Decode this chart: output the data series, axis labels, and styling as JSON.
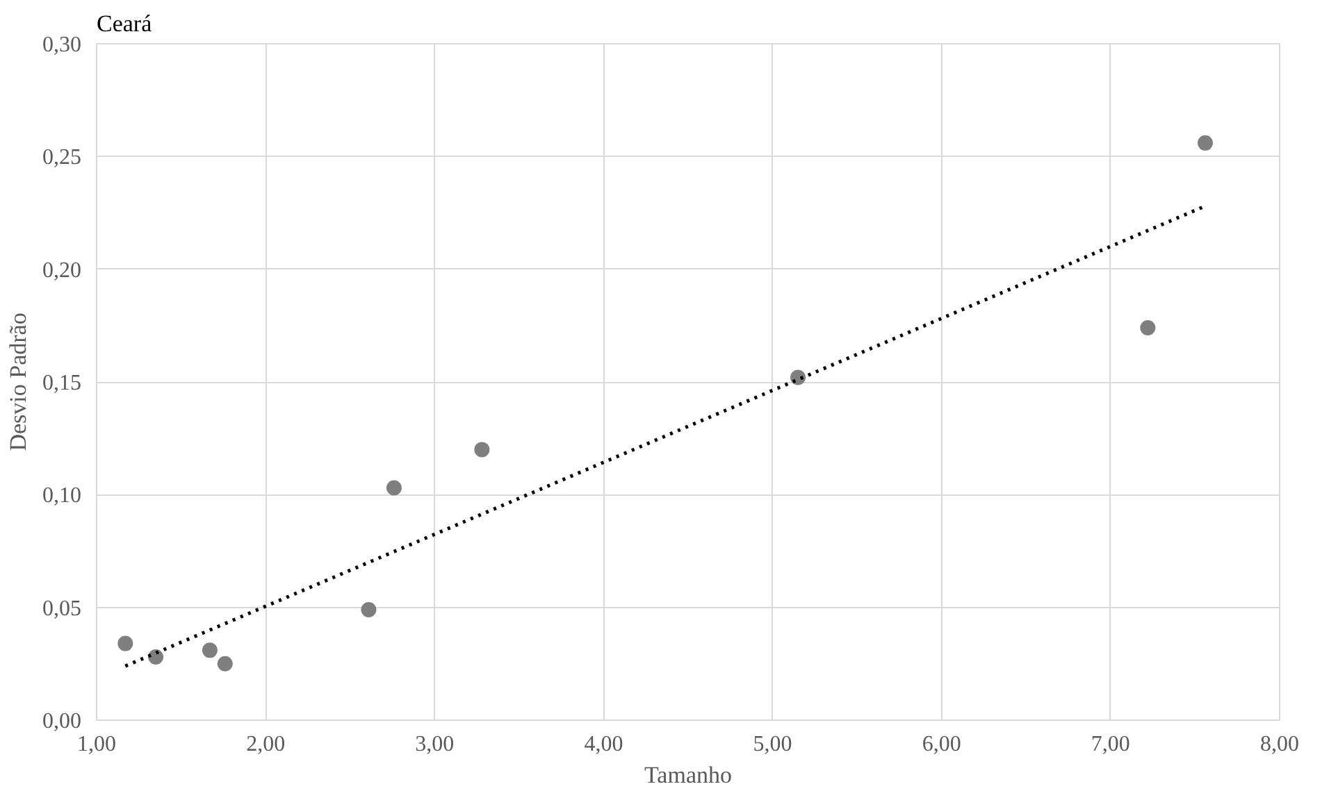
{
  "chart_data": {
    "type": "scatter",
    "title": "Ceará",
    "xlabel": "Tamanho",
    "ylabel": "Desvio Padrão",
    "xlim": [
      1,
      8
    ],
    "ylim": [
      0,
      0.3
    ],
    "xticks": [
      {
        "value": 1,
        "label": "1,00"
      },
      {
        "value": 2,
        "label": "2,00"
      },
      {
        "value": 3,
        "label": "3,00"
      },
      {
        "value": 4,
        "label": "4,00"
      },
      {
        "value": 5,
        "label": "5,00"
      },
      {
        "value": 6,
        "label": "6,00"
      },
      {
        "value": 7,
        "label": "7,00"
      },
      {
        "value": 8,
        "label": "8,00"
      }
    ],
    "yticks": [
      {
        "value": 0,
        "label": "0,00"
      },
      {
        "value": 0.05,
        "label": "0,05"
      },
      {
        "value": 0.1,
        "label": "0,10"
      },
      {
        "value": 0.15,
        "label": "0,15"
      },
      {
        "value": 0.2,
        "label": "0,20"
      },
      {
        "value": 0.25,
        "label": "0,25"
      },
      {
        "value": 0.3,
        "label": "0,30"
      }
    ],
    "grid": true,
    "marker": "circle",
    "series": [
      {
        "color": "#7f7f7f",
        "x": [
          1.17,
          1.35,
          1.67,
          1.76,
          2.61,
          2.76,
          3.28,
          5.15,
          7.22,
          7.56
        ],
        "values": [
          0.034,
          0.028,
          0.031,
          0.025,
          0.049,
          0.103,
          0.12,
          0.152,
          0.174,
          0.256
        ]
      },
      {
        "type": "line",
        "color": "#000000",
        "line_style": "dotted",
        "marker": "none",
        "x": [
          1.17,
          7.56
        ],
        "values": [
          0.024,
          0.228
        ]
      }
    ]
  }
}
